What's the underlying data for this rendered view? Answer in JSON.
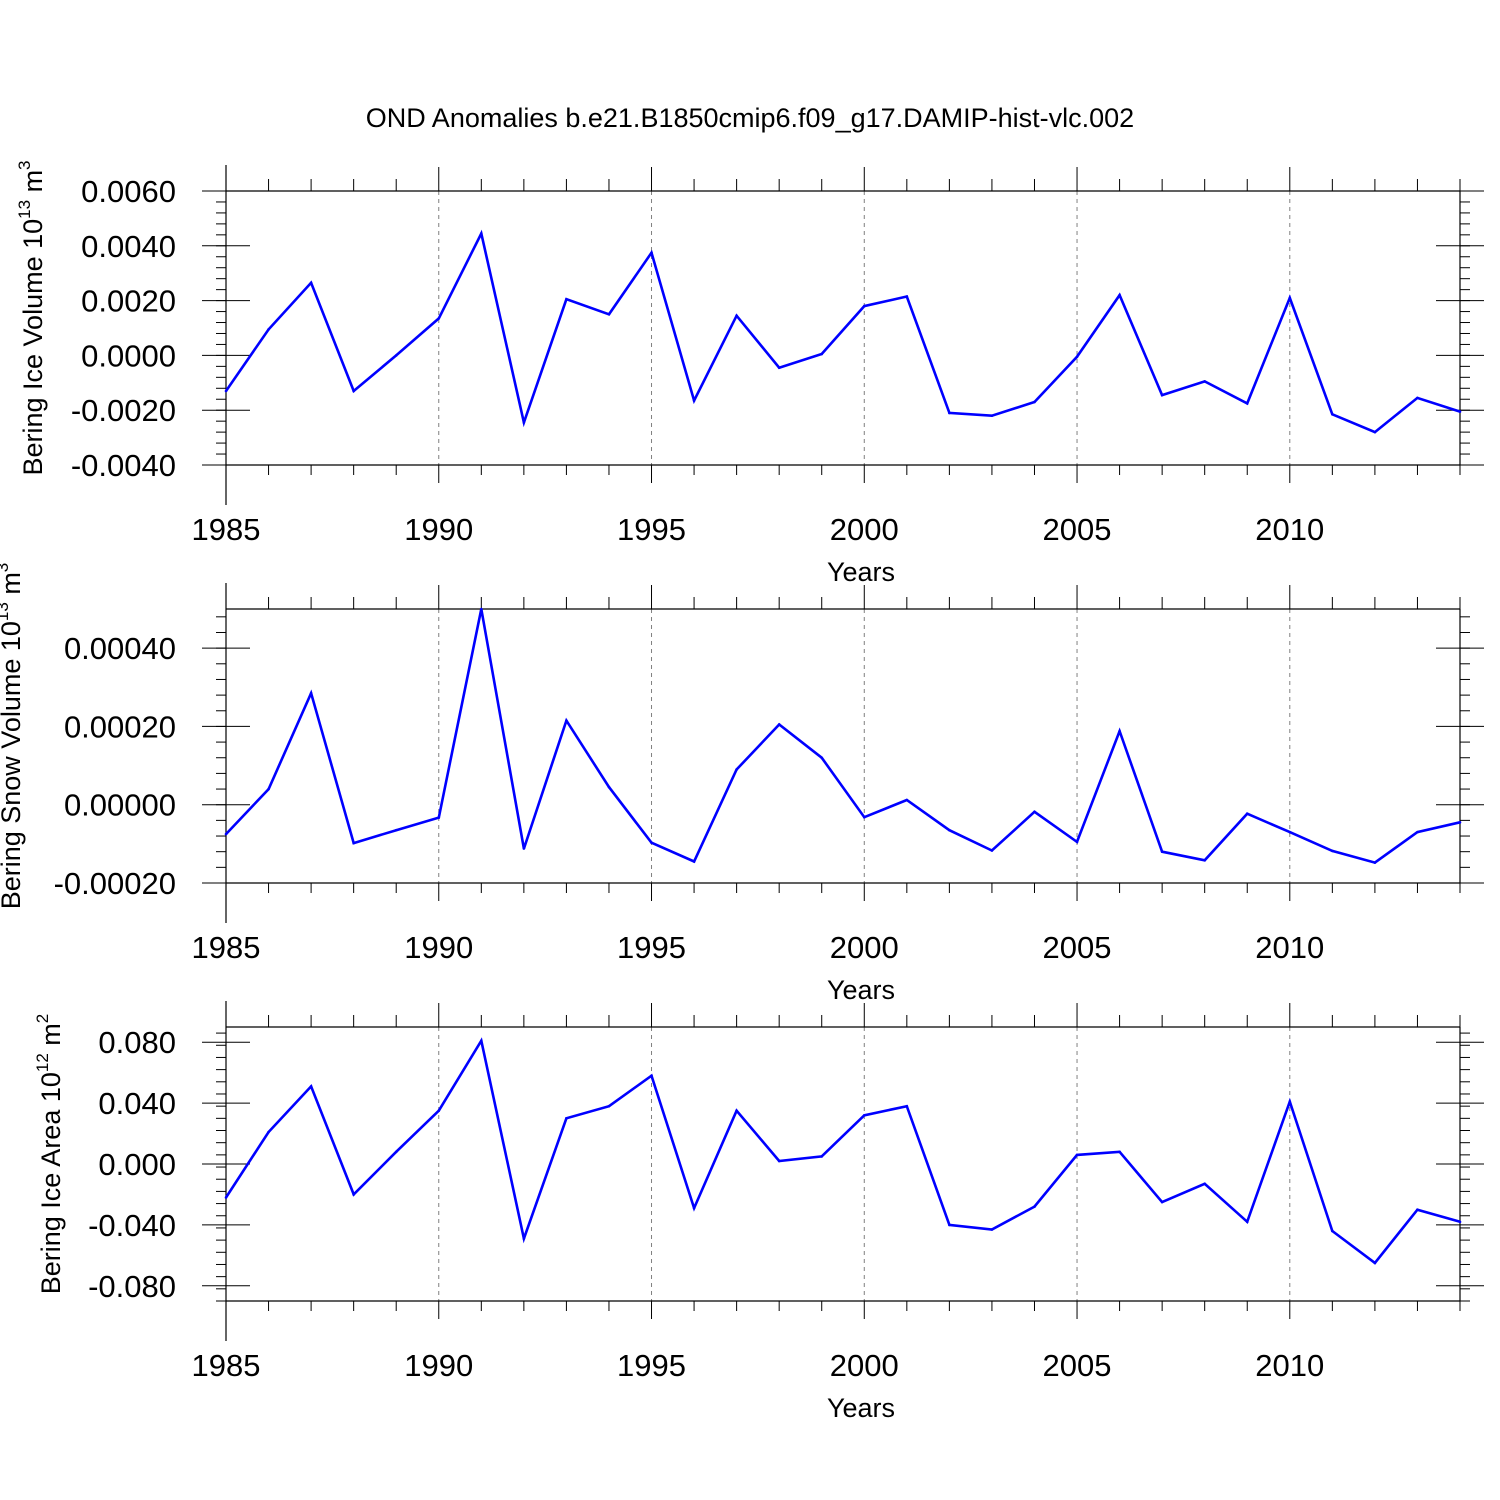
{
  "title": "OND Anomalies b.e21.B1850cmip6.f09_g17.DAMIP-hist-vlc.002",
  "colors": {
    "line": "#0000ff",
    "axis": "#000000",
    "grid": "#808080"
  },
  "chart_data": [
    {
      "type": "line",
      "ylabel_main": "Bering Ice Volume 10",
      "ylabel_exp": "13",
      "ylabel_unit": " m",
      "ylabel_unit_exp": "3",
      "xlabel": "Years",
      "xlim": [
        1985,
        2014
      ],
      "ylim": [
        -0.004,
        0.006
      ],
      "yticks": [
        -0.004,
        -0.002,
        0.0,
        0.002,
        0.004,
        0.006
      ],
      "ytick_labels": [
        "-0.0040",
        "-0.0020",
        "0.0000",
        "0.0020",
        "0.0040",
        "0.0060"
      ],
      "xticks": [
        1985,
        1990,
        1995,
        2000,
        2005,
        2010
      ],
      "xtick_labels": [
        "1985",
        "1990",
        "1995",
        "2000",
        "2005",
        "2010"
      ],
      "grid_x": [
        1990,
        1995,
        2000,
        2005,
        2010
      ],
      "x": [
        1985,
        1986,
        1987,
        1988,
        1989,
        1990,
        1991,
        1992,
        1993,
        1994,
        1995,
        1996,
        1997,
        1998,
        1999,
        2000,
        2001,
        2002,
        2003,
        2004,
        2005,
        2006,
        2007,
        2008,
        2009,
        2010,
        2011,
        2012,
        2013,
        2014
      ],
      "values": [
        -0.0013,
        0.00095,
        0.00265,
        -0.0013,
        0.0,
        0.00135,
        0.00445,
        -0.00245,
        0.00205,
        0.0015,
        0.00375,
        -0.00165,
        0.00145,
        -0.00045,
        5e-05,
        0.0018,
        0.00215,
        -0.0021,
        -0.0022,
        -0.0017,
        -5e-05,
        0.0022,
        -0.00145,
        -0.00095,
        -0.00175,
        0.0021,
        -0.00215,
        -0.0028,
        -0.00155,
        -0.00205
      ]
    },
    {
      "type": "line",
      "ylabel_main": "Bering Snow Volume 10",
      "ylabel_exp": "13",
      "ylabel_unit": " m",
      "ylabel_unit_exp": "3",
      "xlabel": "Years",
      "xlim": [
        1985,
        2014
      ],
      "ylim": [
        -0.0002,
        0.0005
      ],
      "yticks": [
        -0.0002,
        0.0,
        0.0002,
        0.0004
      ],
      "ytick_labels": [
        "-0.00020",
        "0.00000",
        "0.00020",
        "0.00040"
      ],
      "xticks": [
        1985,
        1990,
        1995,
        2000,
        2005,
        2010
      ],
      "xtick_labels": [
        "1985",
        "1990",
        "1995",
        "2000",
        "2005",
        "2010"
      ],
      "grid_x": [
        1990,
        1995,
        2000,
        2005,
        2010
      ],
      "x": [
        1985,
        1986,
        1987,
        1988,
        1989,
        1990,
        1991,
        1992,
        1993,
        1994,
        1995,
        1996,
        1997,
        1998,
        1999,
        2000,
        2001,
        2002,
        2003,
        2004,
        2005,
        2006,
        2007,
        2008,
        2009,
        2010,
        2011,
        2012,
        2013,
        2014
      ],
      "values": [
        -7.5e-05,
        4e-05,
        0.000285,
        -9.8e-05,
        -6.5e-05,
        -3.3e-05,
        0.0005,
        -0.000112,
        0.000215,
        4.5e-05,
        -9.7e-05,
        -0.000145,
        9e-05,
        0.000205,
        0.00012,
        -3.2e-05,
        1.2e-05,
        -6.5e-05,
        -0.000117,
        -1.8e-05,
        -9.5e-05,
        0.000188,
        -0.00012,
        -0.000142,
        -2.3e-05,
        -7e-05,
        -0.000118,
        -0.000148,
        -7e-05,
        -4.5e-05
      ]
    },
    {
      "type": "line",
      "ylabel_main": "Bering Ice Area 10",
      "ylabel_exp": "12",
      "ylabel_unit": " m",
      "ylabel_unit_exp": "2",
      "xlabel": "Years",
      "xlim": [
        1985,
        2014
      ],
      "ylim": [
        -0.09,
        0.09
      ],
      "yticks": [
        -0.08,
        -0.04,
        0.0,
        0.04,
        0.08
      ],
      "ytick_labels": [
        "-0.080",
        "-0.040",
        "0.000",
        "0.040",
        "0.080"
      ],
      "xticks": [
        1985,
        1990,
        1995,
        2000,
        2005,
        2010
      ],
      "xtick_labels": [
        "1985",
        "1990",
        "1995",
        "2000",
        "2005",
        "2010"
      ],
      "grid_x": [
        1990,
        1995,
        2000,
        2005,
        2010
      ],
      "x": [
        1985,
        1986,
        1987,
        1988,
        1989,
        1990,
        1991,
        1992,
        1993,
        1994,
        1995,
        1996,
        1997,
        1998,
        1999,
        2000,
        2001,
        2002,
        2003,
        2004,
        2005,
        2006,
        2007,
        2008,
        2009,
        2010,
        2011,
        2012,
        2013,
        2014
      ],
      "values": [
        -0.022,
        0.021,
        0.051,
        -0.02,
        0.008,
        0.035,
        0.081,
        -0.049,
        0.03,
        0.038,
        0.058,
        -0.029,
        0.035,
        0.002,
        0.005,
        0.032,
        0.038,
        -0.04,
        -0.043,
        -0.028,
        0.006,
        0.008,
        -0.025,
        -0.013,
        -0.038,
        0.041,
        -0.044,
        -0.065,
        -0.03,
        -0.038
      ]
    }
  ]
}
